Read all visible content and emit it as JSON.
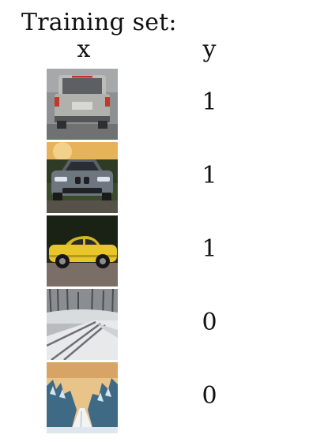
{
  "title": "Training set:",
  "headers": {
    "x": "x",
    "y": "y"
  },
  "rows": [
    {
      "icon": "suv-rear-rain-image",
      "y": "1"
    },
    {
      "icon": "bmw-front-image",
      "y": "1"
    },
    {
      "icon": "yellow-car-side-image",
      "y": "1"
    },
    {
      "icon": "snowy-road-image",
      "y": "0"
    },
    {
      "icon": "winter-forest-road-image",
      "y": "0"
    }
  ]
}
